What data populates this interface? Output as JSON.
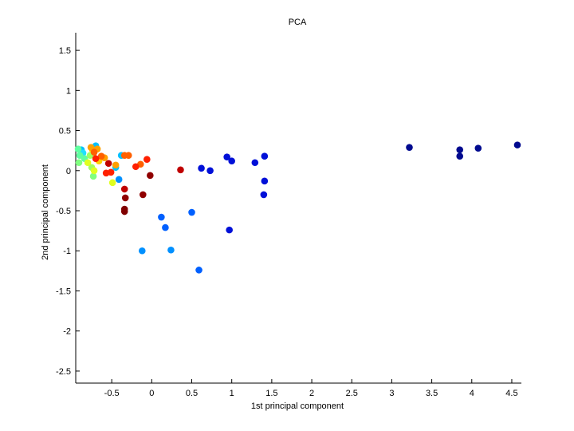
{
  "chart_data": {
    "type": "scatter",
    "title": "PCA",
    "xlabel": "1st principal component",
    "ylabel": "2nd principal component",
    "xlim": [
      -0.95,
      4.62
    ],
    "ylim": [
      -2.65,
      1.72
    ],
    "xticks": [
      -0.5,
      0,
      0.5,
      1,
      1.5,
      2,
      2.5,
      3,
      3.5,
      4,
      4.5
    ],
    "xtick_labels": [
      "-0.5",
      "0",
      "0.5",
      "1",
      "1.5",
      "2",
      "2.5",
      "3",
      "3.5",
      "4",
      "4.5"
    ],
    "yticks": [
      -2.5,
      -2,
      -1.5,
      -1,
      -0.5,
      0,
      0.5,
      1,
      1.5
    ],
    "ytick_labels": [
      "-2.5",
      "-2",
      "-1.5",
      "-1",
      "-0.5",
      "0",
      "0.5",
      "1",
      "1.5"
    ],
    "grid": false,
    "legend": "none",
    "points": [
      {
        "x": 3.22,
        "y": 0.29,
        "color": "#000a8f"
      },
      {
        "x": 3.85,
        "y": 0.26,
        "color": "#000a8f"
      },
      {
        "x": 3.85,
        "y": 0.18,
        "color": "#000a8f"
      },
      {
        "x": 4.08,
        "y": 0.28,
        "color": "#000a8f"
      },
      {
        "x": 4.57,
        "y": 0.32,
        "color": "#000a8f"
      },
      {
        "x": 0.62,
        "y": 0.03,
        "color": "#0010d8"
      },
      {
        "x": 0.73,
        "y": 0.0,
        "color": "#0010d8"
      },
      {
        "x": 0.94,
        "y": 0.17,
        "color": "#0010d8"
      },
      {
        "x": 1.0,
        "y": 0.12,
        "color": "#0010d8"
      },
      {
        "x": 1.29,
        "y": 0.1,
        "color": "#0010d8"
      },
      {
        "x": 1.41,
        "y": 0.18,
        "color": "#0010d8"
      },
      {
        "x": 1.41,
        "y": -0.13,
        "color": "#0010d8"
      },
      {
        "x": 1.4,
        "y": -0.3,
        "color": "#0010d8"
      },
      {
        "x": 0.97,
        "y": -0.74,
        "color": "#0010d8"
      },
      {
        "x": 0.5,
        "y": -0.52,
        "color": "#0060ff"
      },
      {
        "x": 0.12,
        "y": -0.58,
        "color": "#0060ff"
      },
      {
        "x": 0.17,
        "y": -0.71,
        "color": "#0060ff"
      },
      {
        "x": 0.59,
        "y": -1.24,
        "color": "#0060ff"
      },
      {
        "x": -0.12,
        "y": -1.0,
        "color": "#0090ff"
      },
      {
        "x": 0.24,
        "y": -0.99,
        "color": "#0090ff"
      },
      {
        "x": -0.41,
        "y": -0.11,
        "color": "#0090ff"
      },
      {
        "x": -0.7,
        "y": 0.31,
        "color": "#00c0ff"
      },
      {
        "x": -0.38,
        "y": 0.19,
        "color": "#00c0ff"
      },
      {
        "x": -0.45,
        "y": 0.04,
        "color": "#00c0ff"
      },
      {
        "x": -0.88,
        "y": 0.26,
        "color": "#00c0ff"
      },
      {
        "x": -0.86,
        "y": 0.22,
        "color": "#20e0ff"
      },
      {
        "x": -0.92,
        "y": 0.27,
        "color": "#60ffa0"
      },
      {
        "x": -0.9,
        "y": 0.19,
        "color": "#60ffa0"
      },
      {
        "x": -0.84,
        "y": 0.15,
        "color": "#60ffa0"
      },
      {
        "x": -0.91,
        "y": 0.1,
        "color": "#80ff80"
      },
      {
        "x": -0.73,
        "y": -0.07,
        "color": "#80ff80"
      },
      {
        "x": -0.75,
        "y": 0.04,
        "color": "#a0ff60"
      },
      {
        "x": -0.77,
        "y": 0.19,
        "color": "#a0ff60"
      },
      {
        "x": -0.72,
        "y": 0.0,
        "color": "#e0ff20"
      },
      {
        "x": -0.8,
        "y": 0.1,
        "color": "#e0ff20"
      },
      {
        "x": -0.49,
        "y": -0.15,
        "color": "#e0ff20"
      },
      {
        "x": -0.74,
        "y": 0.26,
        "color": "#ffd000"
      },
      {
        "x": -0.66,
        "y": 0.12,
        "color": "#ffd000"
      },
      {
        "x": -0.76,
        "y": 0.29,
        "color": "#ffa000"
      },
      {
        "x": -0.68,
        "y": 0.27,
        "color": "#ffa000"
      },
      {
        "x": -0.59,
        "y": 0.16,
        "color": "#ffa000"
      },
      {
        "x": -0.45,
        "y": 0.07,
        "color": "#ffa000"
      },
      {
        "x": -0.72,
        "y": 0.23,
        "color": "#ff6000"
      },
      {
        "x": -0.63,
        "y": 0.18,
        "color": "#ff6000"
      },
      {
        "x": -0.34,
        "y": 0.19,
        "color": "#ff6000"
      },
      {
        "x": -0.29,
        "y": 0.19,
        "color": "#ff6000"
      },
      {
        "x": -0.14,
        "y": 0.08,
        "color": "#ff6000"
      },
      {
        "x": -0.7,
        "y": 0.15,
        "color": "#ff2000"
      },
      {
        "x": -0.57,
        "y": -0.03,
        "color": "#ff2000"
      },
      {
        "x": -0.51,
        "y": -0.02,
        "color": "#ff2000"
      },
      {
        "x": -0.2,
        "y": 0.05,
        "color": "#ff2000"
      },
      {
        "x": -0.06,
        "y": 0.14,
        "color": "#ff2000"
      },
      {
        "x": -0.54,
        "y": 0.09,
        "color": "#c00000"
      },
      {
        "x": 0.36,
        "y": 0.01,
        "color": "#c00000"
      },
      {
        "x": -0.34,
        "y": -0.23,
        "color": "#c00000"
      },
      {
        "x": -0.02,
        "y": -0.06,
        "color": "#900000"
      },
      {
        "x": -0.11,
        "y": -0.3,
        "color": "#900000"
      },
      {
        "x": -0.33,
        "y": -0.34,
        "color": "#900000"
      },
      {
        "x": -0.34,
        "y": -0.48,
        "color": "#800000"
      },
      {
        "x": -0.34,
        "y": -0.51,
        "color": "#800000"
      }
    ]
  }
}
